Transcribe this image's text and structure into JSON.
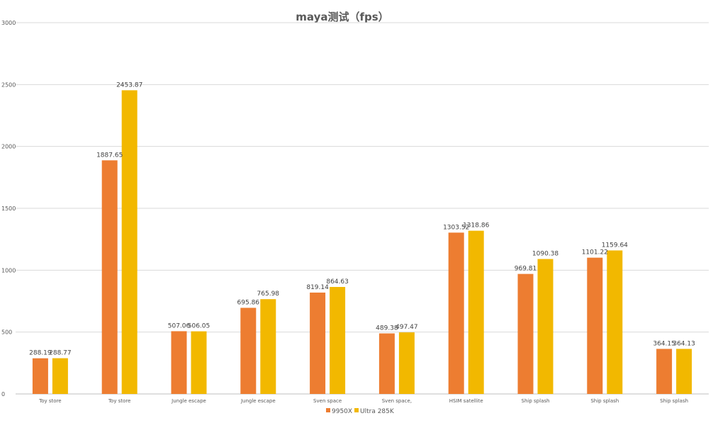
{
  "chart_data": {
    "type": "bar",
    "title": "maya测试（fps）",
    "xlabel": "",
    "ylabel": "",
    "ylim": [
      0,
      3000
    ],
    "yticks": [
      0,
      500,
      1000,
      1500,
      2000,
      2500,
      3000
    ],
    "grid": true,
    "legend_position": "bottom",
    "categories": [
      "Toy store",
      "Toy store",
      "Jungle escape",
      "Jungle escape",
      "Sven space",
      "Sven space,",
      "HSIM satellite",
      "Ship splash",
      "Ship splash",
      "Ship splash"
    ],
    "series": [
      {
        "name": "9950X",
        "color": "#ED7D31",
        "values": [
          288.19,
          1887.65,
          507.06,
          695.86,
          819.14,
          489.38,
          1303.52,
          969.81,
          1101.22,
          364.15
        ]
      },
      {
        "name": "Ultra 285K",
        "color": "#F2B800",
        "values": [
          288.77,
          2453.87,
          506.05,
          765.98,
          864.63,
          497.47,
          1318.86,
          1090.38,
          1159.64,
          364.13
        ]
      }
    ]
  }
}
